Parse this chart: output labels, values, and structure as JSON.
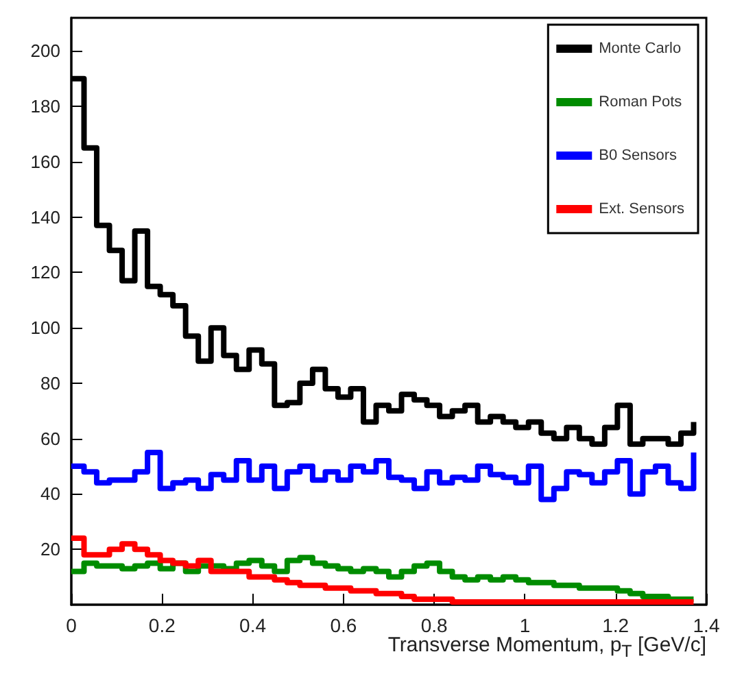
{
  "chart_data": {
    "type": "step",
    "xlabel": "Transverse Momentum, p$_{T}$ [GeV/c]",
    "x": [
      0,
      0.028,
      0.056,
      0.084,
      0.112,
      0.14,
      0.168,
      0.196,
      0.224,
      0.252,
      0.28,
      0.308,
      0.336,
      0.364,
      0.392,
      0.42,
      0.448,
      0.476,
      0.504,
      0.532,
      0.56,
      0.588,
      0.616,
      0.644,
      0.672,
      0.7,
      0.728,
      0.756,
      0.784,
      0.812,
      0.84,
      0.868,
      0.896,
      0.924,
      0.952,
      0.98,
      1.008,
      1.036,
      1.064,
      1.092,
      1.12,
      1.148,
      1.176,
      1.204,
      1.232,
      1.26,
      1.288,
      1.316,
      1.344,
      1.372
    ],
    "series": [
      {
        "name": "Monte Carlo",
        "color": "#000000",
        "values": [
          190,
          165,
          137,
          128,
          117,
          135,
          115,
          112,
          108,
          97,
          88,
          100,
          90,
          85,
          92,
          87,
          72,
          73,
          80,
          85,
          78,
          75,
          78,
          66,
          72,
          70,
          76,
          74,
          72,
          68,
          70,
          72,
          66,
          68,
          66,
          64,
          66,
          62,
          60,
          64,
          60,
          58,
          64,
          72,
          58,
          60,
          60,
          58,
          62,
          66
        ]
      },
      {
        "name": "Roman Pots",
        "color": "#008c00",
        "values": [
          12,
          15,
          14,
          14,
          13,
          14,
          15,
          13,
          15,
          12,
          14,
          14,
          13,
          15,
          16,
          14,
          12,
          16,
          17,
          15,
          14,
          13,
          12,
          13,
          12,
          10,
          12,
          14,
          15,
          12,
          10,
          9,
          10,
          9,
          10,
          9,
          8,
          8,
          7,
          7,
          6,
          6,
          6,
          5,
          4,
          3,
          3,
          2,
          2,
          2
        ]
      },
      {
        "name": "B0 Sensors",
        "color": "#0000ff",
        "values": [
          50,
          48,
          44,
          45,
          45,
          48,
          55,
          42,
          44,
          45,
          42,
          47,
          45,
          52,
          45,
          50,
          42,
          48,
          50,
          45,
          48,
          45,
          50,
          48,
          52,
          46,
          45,
          42,
          48,
          44,
          46,
          45,
          50,
          47,
          46,
          44,
          50,
          38,
          42,
          48,
          47,
          44,
          48,
          52,
          40,
          48,
          50,
          44,
          42,
          55
        ]
      },
      {
        "name": "Ext. Sensors",
        "color": "#ff0000",
        "values": [
          24,
          18,
          18,
          20,
          22,
          20,
          18,
          16,
          15,
          14,
          16,
          12,
          12,
          12,
          10,
          10,
          9,
          8,
          7,
          7,
          6,
          6,
          5,
          5,
          4,
          4,
          3,
          2,
          2,
          2,
          1,
          1,
          1,
          1,
          1,
          1,
          1,
          1,
          1,
          1,
          1,
          1,
          1,
          1,
          1,
          1,
          1,
          1,
          1,
          1
        ]
      }
    ],
    "xlim": [
      0,
      1.4
    ],
    "xticks": [
      0,
      0.2,
      0.4,
      0.6,
      0.8,
      1,
      1.2,
      1.4
    ],
    "ylim": [
      0,
      212
    ],
    "yticks": [
      20,
      40,
      60,
      80,
      100,
      120,
      140,
      160,
      180,
      200
    ],
    "grid": false,
    "legend": "top right",
    "line_style": "solid",
    "marker": "none"
  }
}
